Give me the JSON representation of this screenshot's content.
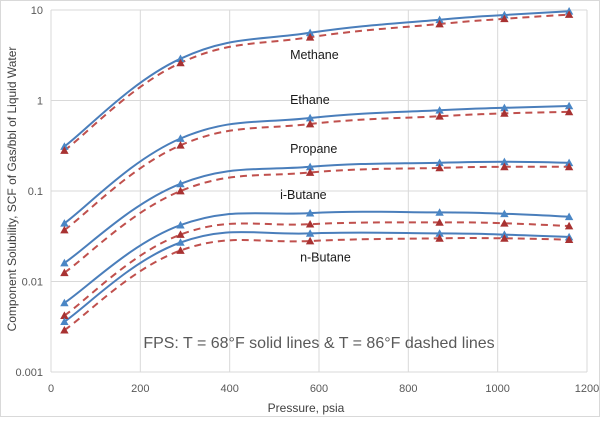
{
  "chart_data": {
    "type": "line",
    "title": "",
    "xlabel": "Pressure, psia",
    "ylabel": "Component Solubility, SCF of Gas/bbl of Liquid Water",
    "xlim": [
      0,
      1200
    ],
    "ylim": [
      0.001,
      10
    ],
    "y_scale": "log",
    "x_ticks": [
      0,
      200,
      400,
      600,
      800,
      1000,
      1200
    ],
    "x_tick_labels": [
      "0",
      "200",
      "400",
      "600",
      "800",
      "1000",
      "1200"
    ],
    "y_ticks": [
      0.001,
      0.01,
      0.1,
      1,
      10
    ],
    "y_tick_labels": [
      "0.001",
      "0.01",
      "0.1",
      "1",
      "10"
    ],
    "grid": {
      "vertical": true,
      "horizontal": true
    },
    "annotation": "FPS: T = 68°F solid lines & T = 86°F dashed lines",
    "colors": {
      "solid": "#4a7ebb",
      "solid_marker": "#4a86c5",
      "dashed": "#c0504d",
      "dashed_marker": "#a83232",
      "grid": "#d9d9d9"
    },
    "x": [
      30,
      290,
      580,
      870,
      1015,
      1160
    ],
    "components": [
      {
        "label": "Methane",
        "solid": [
          0.31,
          2.9,
          5.6,
          7.8,
          8.8,
          9.7
        ],
        "dashed": [
          0.28,
          2.6,
          5.0,
          7.0,
          8.0,
          8.9
        ]
      },
      {
        "label": "Ethane",
        "solid": [
          0.044,
          0.38,
          0.64,
          0.78,
          0.83,
          0.87
        ],
        "dashed": [
          0.037,
          0.32,
          0.55,
          0.67,
          0.72,
          0.75
        ]
      },
      {
        "label": "Propane",
        "solid": [
          0.016,
          0.12,
          0.185,
          0.205,
          0.21,
          0.205
        ],
        "dashed": [
          0.0125,
          0.1,
          0.16,
          0.18,
          0.185,
          0.185
        ]
      },
      {
        "label": "i-Butane",
        "solid": [
          0.0058,
          0.042,
          0.057,
          0.058,
          0.056,
          0.052
        ],
        "dashed": [
          0.0042,
          0.033,
          0.043,
          0.045,
          0.044,
          0.041
        ]
      },
      {
        "label": "n-Butane",
        "solid": [
          0.0036,
          0.027,
          0.034,
          0.034,
          0.033,
          0.031
        ],
        "dashed": [
          0.0029,
          0.022,
          0.028,
          0.03,
          0.03,
          0.029
        ]
      }
    ]
  }
}
